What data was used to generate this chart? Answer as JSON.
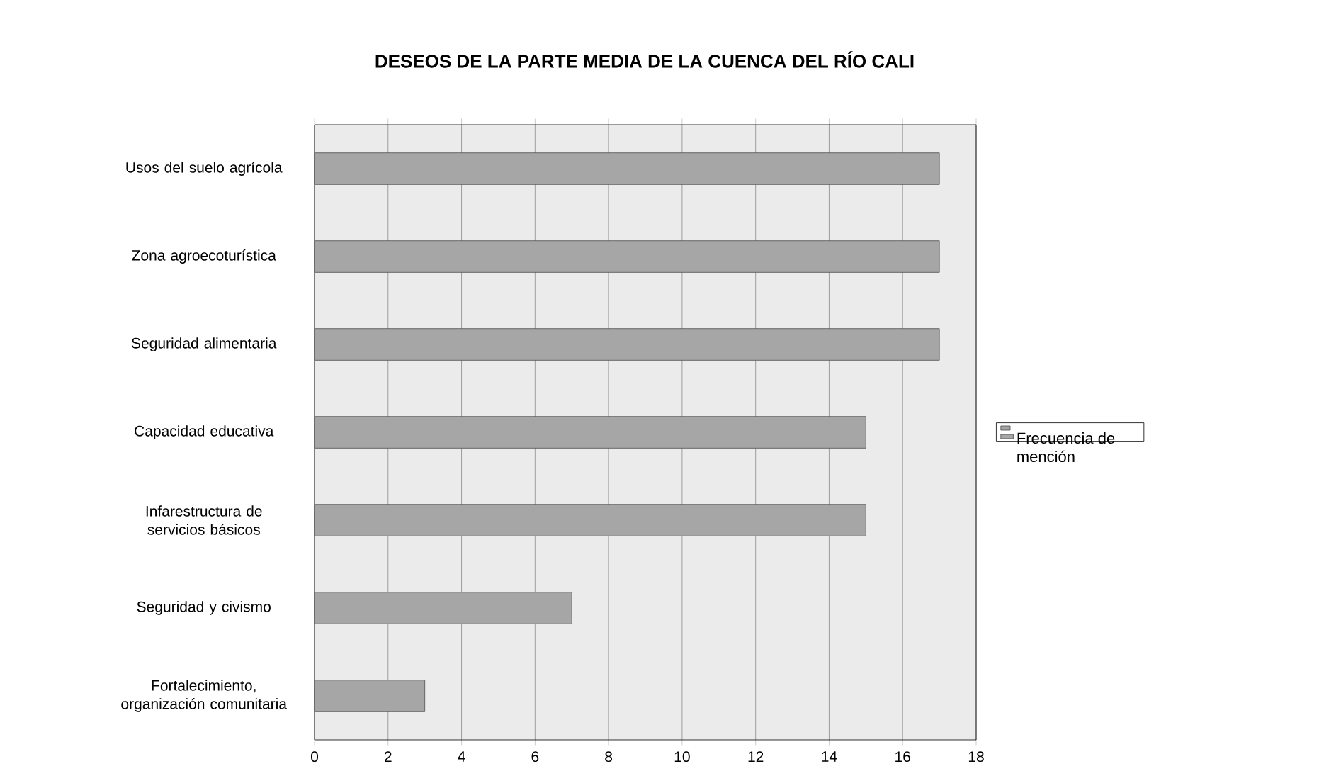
{
  "chart_data": {
    "type": "bar",
    "orientation": "horizontal",
    "title": "DESEOS DE LA PARTE MEDIA DE LA CUENCA DEL RÍO CALI",
    "categories": [
      "Usos del suelo agrícola",
      "Zona agroecoturística",
      "Seguridad alimentaria",
      "Capacidad educativa",
      "Infarestructura de servicios básicos",
      "Seguridad y civismo",
      "Fortalecimiento, organización comunitaria"
    ],
    "series": [
      {
        "name": "Frecuencia de mención",
        "color": "#a6a6a6",
        "values": [
          17,
          17,
          17,
          15,
          15,
          7,
          3
        ]
      }
    ],
    "xlim": [
      0,
      18
    ],
    "xticks": [
      0,
      2,
      4,
      6,
      8,
      10,
      12,
      14,
      16,
      18
    ],
    "grid": "x",
    "legend": "right"
  }
}
